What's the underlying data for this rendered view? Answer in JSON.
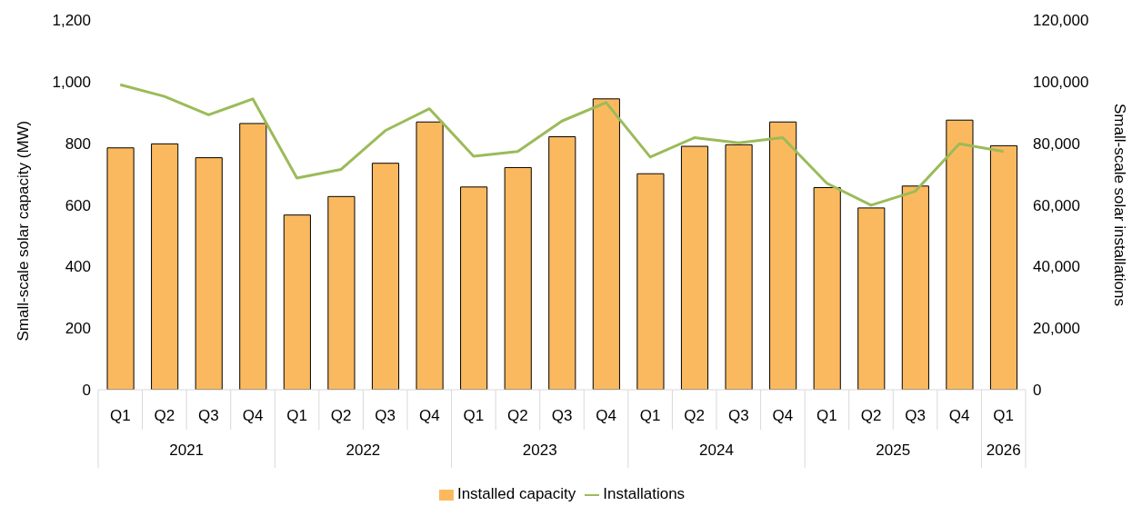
{
  "chart_data": {
    "type": "bar",
    "categories": [
      "Q1",
      "Q2",
      "Q3",
      "Q4",
      "Q1",
      "Q2",
      "Q3",
      "Q4",
      "Q1",
      "Q2",
      "Q3",
      "Q4",
      "Q1",
      "Q2",
      "Q3",
      "Q4",
      "Q1",
      "Q2",
      "Q3",
      "Q4",
      "Q1"
    ],
    "annotations": [
      "2021",
      "2022",
      "2023",
      "2024",
      "2025",
      "2026"
    ],
    "ylabel": "Small-scale solar capacity (MW)",
    "y2label": "Small-scale solar installations",
    "series": [
      {
        "name": "Installed capacity",
        "color": "#fbb95f",
        "values": [
          785,
          798,
          753,
          864,
          567,
          627,
          735,
          869,
          658,
          721,
          821,
          944,
          701,
          790,
          795,
          869,
          656,
          590,
          661,
          875,
          792
        ]
      },
      {
        "name": "Installations",
        "type": "line",
        "axis": "y2",
        "color": "#9bbb59",
        "marker": "none",
        "values": [
          99000,
          95200,
          89200,
          94400,
          68700,
          71500,
          84100,
          91200,
          75800,
          77300,
          87200,
          93200,
          75500,
          81800,
          80100,
          81800,
          67000,
          59900,
          64400,
          79800,
          77300
        ]
      }
    ],
    "ylim": [
      0,
      1200
    ],
    "yticks": [
      {
        "value": 0,
        "label": "0"
      },
      {
        "value": 200,
        "label": "200"
      },
      {
        "value": 400,
        "label": "400"
      },
      {
        "value": 600,
        "label": "600"
      },
      {
        "value": 800,
        "label": "800"
      },
      {
        "value": 1000,
        "label": "1,000"
      },
      {
        "value": 1200,
        "label": "1,200"
      }
    ],
    "y2lim": [
      0,
      120000
    ],
    "y2ticks": [
      {
        "value": 0,
        "label": "0"
      },
      {
        "value": 20000,
        "label": "20,000"
      },
      {
        "value": 40000,
        "label": "40,000"
      },
      {
        "value": 60000,
        "label": "60,000"
      },
      {
        "value": 80000,
        "label": "80,000"
      },
      {
        "value": 100000,
        "label": "100,000"
      },
      {
        "value": 120000,
        "label": "120,000"
      }
    ],
    "grid": false,
    "legend": "bottom"
  }
}
